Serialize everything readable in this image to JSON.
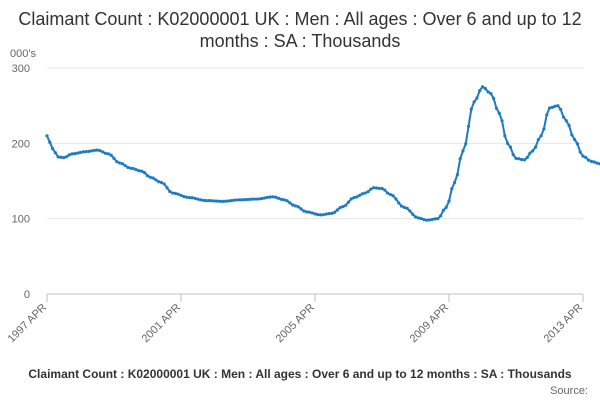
{
  "chart_data": {
    "type": "line",
    "title": "Claimant Count : K02000001 UK : Men : All ages : Over 6 and up to 12 months : SA : Thousands",
    "unit_label": "000's",
    "xlabel": "",
    "ylabel": "",
    "ylim": [
      0,
      300
    ],
    "y_ticks": [
      0,
      100,
      200,
      300
    ],
    "x_ticks": [
      "1997 APR",
      "2001 APR",
      "2005 APR",
      "2009 APR",
      "2013 APR"
    ],
    "grid": true,
    "legend_position": "bottom",
    "color": "#1f7bc1",
    "series": [
      {
        "name": "Claimant Count : K02000001 UK : Men : All ages : Over 6 and up to 12 months : SA : Thousands",
        "anchors": [
          [
            "1997-04",
            210
          ],
          [
            "1997-06",
            193
          ],
          [
            "1997-08",
            182
          ],
          [
            "1997-10",
            181
          ],
          [
            "1998-01",
            186
          ],
          [
            "1998-06",
            189
          ],
          [
            "1998-10",
            191
          ],
          [
            "1999-02",
            186
          ],
          [
            "1999-06",
            174
          ],
          [
            "1999-10",
            167
          ],
          [
            "2000-02",
            163
          ],
          [
            "2000-05",
            155
          ],
          [
            "2000-09",
            148
          ],
          [
            "2001-01",
            134
          ],
          [
            "2001-07",
            128
          ],
          [
            "2002-01",
            124
          ],
          [
            "2002-07",
            123
          ],
          [
            "2003-01",
            125
          ],
          [
            "2003-07",
            126
          ],
          [
            "2004-01",
            129
          ],
          [
            "2004-05",
            125
          ],
          [
            "2004-09",
            117
          ],
          [
            "2005-01",
            109
          ],
          [
            "2005-06",
            105
          ],
          [
            "2005-10",
            107
          ],
          [
            "2006-02",
            116
          ],
          [
            "2006-06",
            128
          ],
          [
            "2006-10",
            134
          ],
          [
            "2007-01",
            141
          ],
          [
            "2007-04",
            140
          ],
          [
            "2007-07",
            132
          ],
          [
            "2007-12",
            115
          ],
          [
            "2008-05",
            101
          ],
          [
            "2008-08",
            98
          ],
          [
            "2008-12",
            100
          ],
          [
            "2009-03",
            115
          ],
          [
            "2009-06",
            148
          ],
          [
            "2009-09",
            190
          ],
          [
            "2010-01",
            255
          ],
          [
            "2010-04",
            275
          ],
          [
            "2010-07",
            266
          ],
          [
            "2010-10",
            240
          ],
          [
            "2011-01",
            200
          ],
          [
            "2011-04",
            180
          ],
          [
            "2011-07",
            178
          ],
          [
            "2011-10",
            190
          ],
          [
            "2012-01",
            210
          ],
          [
            "2012-04",
            247
          ],
          [
            "2012-07",
            250
          ],
          [
            "2012-10",
            230
          ],
          [
            "2013-01",
            205
          ],
          [
            "2013-04",
            183
          ],
          [
            "2013-07",
            176
          ],
          [
            "2013-10",
            173
          ],
          [
            "2014-01",
            174
          ]
        ]
      }
    ],
    "legend_label": "Claimant Count : K02000001 UK : Men : All ages : Over 6 and up to 12 months : SA : Thousands",
    "credit": "Source:"
  }
}
